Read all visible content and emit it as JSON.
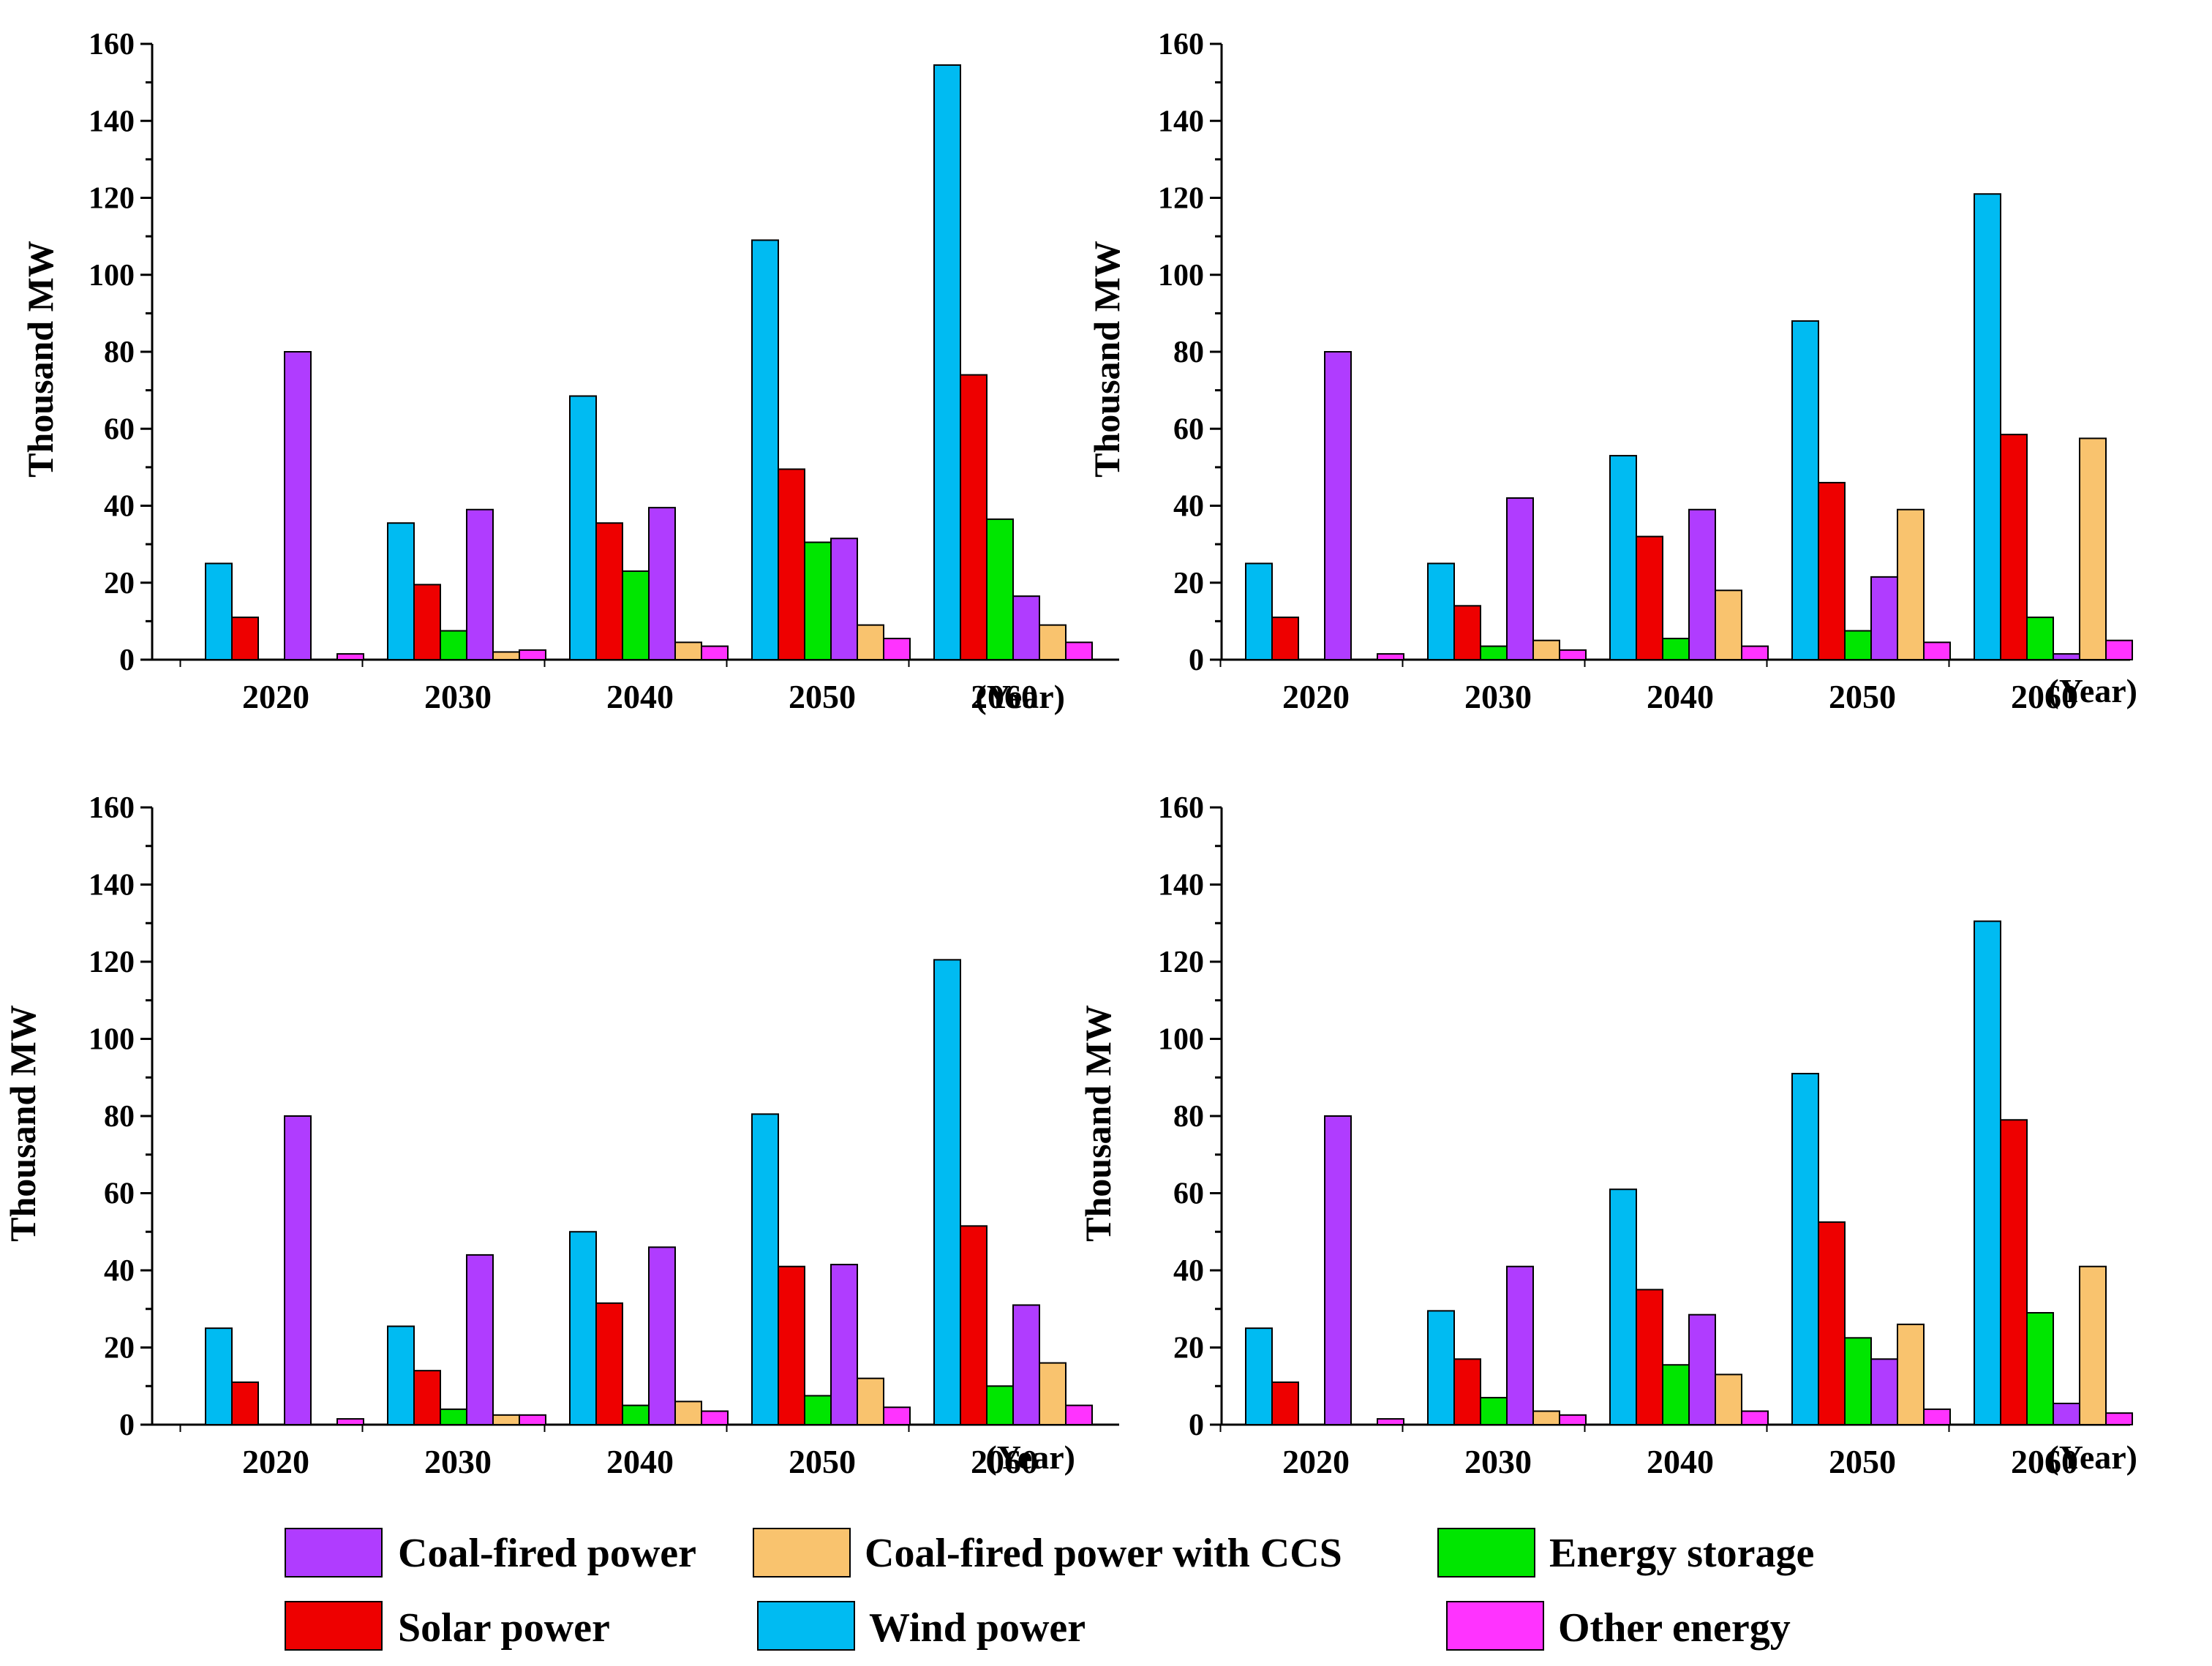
{
  "legend": [
    {
      "key": "coal",
      "label": "Coal-fired power",
      "color": "#b03cff"
    },
    {
      "key": "coal_ccs",
      "label": "Coal-fired power with CCS",
      "color": "#f9c36e"
    },
    {
      "key": "storage",
      "label": "Energy storage",
      "color": "#00e600"
    },
    {
      "key": "solar",
      "label": "Solar power",
      "color": "#ee0000"
    },
    {
      "key": "wind",
      "label": "Wind power",
      "color": "#00bbf2"
    },
    {
      "key": "other",
      "label": "Other energy",
      "color": "#ff33ff"
    }
  ],
  "chart_data": [
    {
      "type": "bar",
      "position": "top-left",
      "title": "",
      "xlabel": "",
      "x_unit_label": "(Year)",
      "ylabel": "Thousand MW",
      "ylim": [
        0,
        160
      ],
      "yticks": [
        0,
        20,
        40,
        60,
        80,
        100,
        120,
        140,
        160
      ],
      "categories": [
        "2020",
        "2030",
        "2040",
        "2050",
        "2060"
      ],
      "series": [
        {
          "name": "Wind power",
          "values": [
            25,
            35.5,
            68.5,
            109,
            154.5
          ]
        },
        {
          "name": "Solar power",
          "values": [
            11,
            19.5,
            35.5,
            49.5,
            74
          ]
        },
        {
          "name": "Energy storage",
          "values": [
            0,
            7.5,
            23,
            30.5,
            36.5
          ]
        },
        {
          "name": "Coal-fired power",
          "values": [
            80,
            39,
            39.5,
            31.5,
            16.5
          ]
        },
        {
          "name": "Coal-fired power with CCS",
          "values": [
            0,
            2,
            4.5,
            9,
            9
          ]
        },
        {
          "name": "Other energy",
          "values": [
            1.5,
            2.5,
            3.5,
            5.5,
            4.5
          ]
        }
      ]
    },
    {
      "type": "bar",
      "position": "top-right",
      "title": "",
      "xlabel": "",
      "x_unit_label": "(Year)",
      "ylabel": "Thousand MW",
      "ylim": [
        0,
        160
      ],
      "yticks": [
        0,
        20,
        40,
        60,
        80,
        100,
        120,
        140,
        160
      ],
      "categories": [
        "2020",
        "2030",
        "2040",
        "2050",
        "2060"
      ],
      "series": [
        {
          "name": "Wind power",
          "values": [
            25,
            25,
            53,
            88,
            121
          ]
        },
        {
          "name": "Solar power",
          "values": [
            11,
            14,
            32,
            46,
            58.5
          ]
        },
        {
          "name": "Energy storage",
          "values": [
            0,
            3.5,
            5.5,
            7.5,
            11
          ]
        },
        {
          "name": "Coal-fired power",
          "values": [
            80,
            42,
            39,
            21.5,
            1.5
          ]
        },
        {
          "name": "Coal-fired power with CCS",
          "values": [
            0,
            5,
            18,
            39,
            57.5
          ]
        },
        {
          "name": "Other energy",
          "values": [
            1.5,
            2.5,
            3.5,
            4.5,
            5
          ]
        }
      ]
    },
    {
      "type": "bar",
      "position": "bottom-left",
      "title": "",
      "xlabel": "",
      "x_unit_label": "(Year)",
      "ylabel": "Thousand MW",
      "ylim": [
        0,
        160
      ],
      "yticks": [
        0,
        20,
        40,
        60,
        80,
        100,
        120,
        140,
        160
      ],
      "categories": [
        "2020",
        "2030",
        "2040",
        "2050",
        "2060"
      ],
      "series": [
        {
          "name": "Wind power",
          "values": [
            25,
            25.5,
            50,
            80.5,
            120.5
          ]
        },
        {
          "name": "Solar power",
          "values": [
            11,
            14,
            31.5,
            41,
            51.5
          ]
        },
        {
          "name": "Energy storage",
          "values": [
            0,
            4,
            5,
            7.5,
            10
          ]
        },
        {
          "name": "Coal-fired power",
          "values": [
            80,
            44,
            46,
            41.5,
            31
          ]
        },
        {
          "name": "Coal-fired power with CCS",
          "values": [
            0,
            2.5,
            6,
            12,
            16
          ]
        },
        {
          "name": "Other energy",
          "values": [
            1.5,
            2.5,
            3.5,
            4.5,
            5
          ]
        }
      ]
    },
    {
      "type": "bar",
      "position": "bottom-right",
      "title": "",
      "xlabel": "",
      "x_unit_label": "(Year)",
      "ylabel": "Thousand MW",
      "ylim": [
        0,
        160
      ],
      "yticks": [
        0,
        20,
        40,
        60,
        80,
        100,
        120,
        140,
        160
      ],
      "categories": [
        "2020",
        "2030",
        "2040",
        "2050",
        "2060"
      ],
      "series": [
        {
          "name": "Wind power",
          "values": [
            25,
            29.5,
            61,
            91,
            130.5
          ]
        },
        {
          "name": "Solar power",
          "values": [
            11,
            17,
            35,
            52.5,
            79
          ]
        },
        {
          "name": "Energy storage",
          "values": [
            0,
            7,
            15.5,
            22.5,
            29
          ]
        },
        {
          "name": "Coal-fired power",
          "values": [
            80,
            41,
            28.5,
            17,
            5.5
          ]
        },
        {
          "name": "Coal-fired power with CCS",
          "values": [
            0,
            3.5,
            13,
            26,
            41
          ]
        },
        {
          "name": "Other energy",
          "values": [
            1.5,
            2.5,
            3.5,
            4,
            3
          ]
        }
      ]
    }
  ]
}
